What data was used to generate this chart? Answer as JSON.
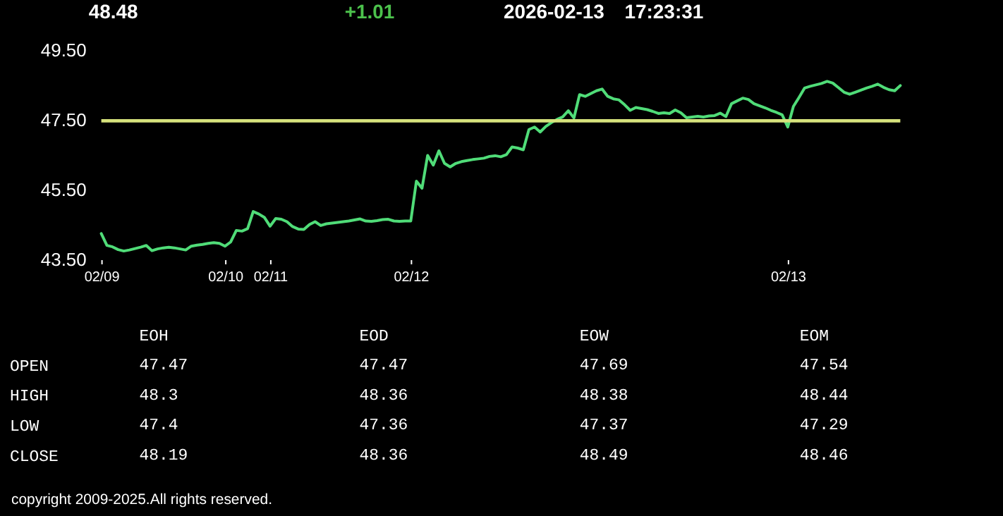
{
  "chart_data": [
    {
      "type": "line",
      "annotations": [
        "48.48",
        "+1.01",
        "2026-02-13",
        "17:23:31"
      ],
      "categories": [
        "02/09",
        null,
        null,
        null,
        null,
        null,
        null,
        null,
        null,
        null,
        null,
        null,
        null,
        null,
        null,
        null,
        null,
        null,
        null,
        null,
        null,
        null,
        "02/10",
        null,
        null,
        null,
        null,
        null,
        null,
        null,
        "02/11",
        null,
        null,
        null,
        null,
        null,
        null,
        null,
        null,
        null,
        null,
        null,
        null,
        null,
        null,
        null,
        null,
        null,
        null,
        null,
        null,
        null,
        null,
        null,
        null,
        "02/12",
        null,
        null,
        null,
        null,
        null,
        null,
        null,
        null,
        null,
        null,
        null,
        null,
        null,
        null,
        null,
        null,
        null,
        null,
        null,
        null,
        null,
        null,
        null,
        null,
        null,
        null,
        null,
        null,
        null,
        null,
        null,
        null,
        null,
        null,
        null,
        null,
        null,
        null,
        null,
        null,
        null,
        null,
        null,
        null,
        null,
        null,
        null,
        null,
        null,
        null,
        null,
        null,
        null,
        null,
        null,
        null,
        null,
        null,
        null,
        null,
        null,
        null,
        null,
        null,
        null,
        null,
        "02/13",
        null,
        null,
        null,
        null,
        null,
        null,
        null,
        null,
        null,
        null,
        null,
        null,
        null,
        null,
        null,
        null,
        null,
        null,
        null,
        null
      ],
      "series": [
        {
          "color": "#50dc78",
          "values": [
            44.24,
            43.9,
            43.86,
            43.78,
            43.74,
            43.77,
            43.81,
            43.85,
            43.9,
            43.75,
            43.8,
            43.83,
            43.85,
            43.83,
            43.8,
            43.77,
            43.88,
            43.91,
            43.93,
            43.96,
            43.98,
            43.96,
            43.88,
            44.0,
            44.33,
            44.31,
            44.38,
            44.87,
            44.8,
            44.7,
            44.45,
            44.67,
            44.65,
            44.58,
            44.44,
            44.37,
            44.36,
            44.5,
            44.58,
            44.47,
            44.52,
            44.54,
            44.56,
            44.58,
            44.6,
            44.63,
            44.66,
            44.6,
            44.59,
            44.61,
            44.64,
            44.65,
            44.6,
            44.59,
            44.6,
            44.6,
            45.74,
            45.54,
            46.48,
            46.2,
            46.61,
            46.25,
            46.15,
            46.25,
            46.3,
            46.33,
            46.36,
            46.38,
            46.4,
            46.45,
            46.47,
            46.44,
            46.5,
            46.72,
            46.69,
            46.64,
            47.22,
            47.29,
            47.15,
            47.31,
            47.42,
            47.51,
            47.58,
            47.76,
            47.55,
            48.22,
            48.17,
            48.25,
            48.33,
            48.38,
            48.17,
            48.1,
            48.07,
            47.93,
            47.77,
            47.85,
            47.82,
            47.79,
            47.74,
            47.68,
            47.7,
            47.68,
            47.78,
            47.7,
            47.56,
            47.58,
            47.6,
            47.58,
            47.61,
            47.62,
            47.69,
            47.59,
            47.96,
            48.04,
            48.12,
            48.08,
            47.96,
            47.9,
            47.84,
            47.77,
            47.71,
            47.64,
            47.29,
            47.88,
            48.14,
            48.41,
            48.46,
            48.5,
            48.54,
            48.6,
            48.55,
            48.42,
            48.29,
            48.23,
            48.29,
            48.35,
            48.41,
            48.46,
            48.52,
            48.43,
            48.36,
            48.33,
            48.48
          ]
        }
      ],
      "ylim": [
        43.5,
        49.5
      ],
      "yticks": [
        {
          "value": 43.5,
          "label": "43.50"
        },
        {
          "value": 45.5,
          "label": "45.50"
        },
        {
          "value": 47.5,
          "label": "47.50"
        },
        {
          "value": 49.5,
          "label": "49.50"
        }
      ],
      "ref_lines": [
        {
          "axis": "y",
          "value": 47.47,
          "color": "#d6e27c"
        }
      ]
    },
    {
      "type": "other",
      "categories": [
        "EOH",
        "EOD",
        "EOW",
        "EOM"
      ],
      "y_categories": [
        "OPEN",
        "HIGH",
        "LOW",
        "CLOSE"
      ],
      "cell_labels": [
        [
          "47.47",
          "47.47",
          "47.69",
          "47.54"
        ],
        [
          "48.3",
          "48.36",
          "48.38",
          "48.44"
        ],
        [
          "47.4",
          "47.36",
          "47.37",
          "47.29"
        ],
        [
          "48.19",
          "48.36",
          "48.49",
          "48.46"
        ]
      ],
      "annotations": [
        "copyright 2009-2025.All rights reserved."
      ]
    }
  ]
}
